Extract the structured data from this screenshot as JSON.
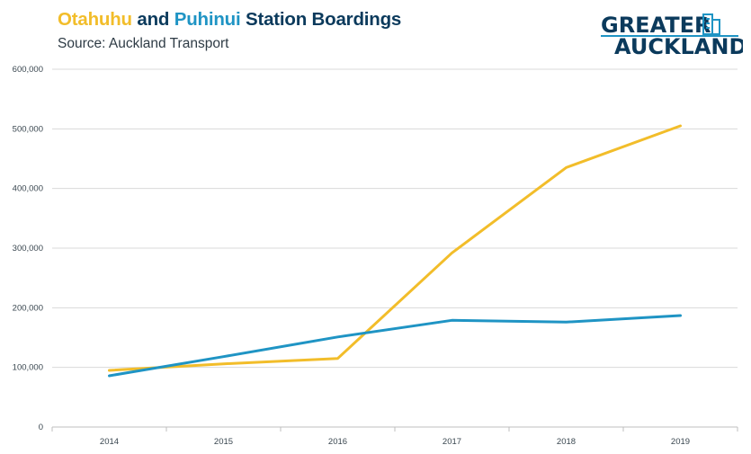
{
  "header": {
    "title_part1": "Otahuhu",
    "title_part2": " and ",
    "title_part3": "Puhinui",
    "title_part4": " Station Boardings",
    "subtitle": "Source: Auckland Transport"
  },
  "logo": {
    "line1": "GREATER",
    "line2": "AUCKLAND"
  },
  "colors": {
    "otahuhu": "#f2bd2a",
    "puhinui": "#1f94c4",
    "title": "#0b3a5c"
  },
  "chart_data": {
    "type": "line",
    "title": "Otahuhu and Puhinui Station Boardings",
    "subtitle": "Source: Auckland Transport",
    "categories": [
      "2014",
      "2015",
      "2016",
      "2017",
      "2018",
      "2019"
    ],
    "y_tick_labels": [
      "0",
      "100,000",
      "200,000",
      "300,000",
      "400,000",
      "500,000",
      "600,000"
    ],
    "ylim": [
      0,
      600000
    ],
    "grid": true,
    "legend": "in title",
    "series": [
      {
        "name": "Otahuhu",
        "color": "#f2bd2a",
        "values": [
          95000,
          106000,
          115000,
          292000,
          435000,
          505000
        ]
      },
      {
        "name": "Puhinui",
        "color": "#1f94c4",
        "values": [
          86000,
          118000,
          151000,
          179000,
          176000,
          187000
        ]
      }
    ]
  }
}
